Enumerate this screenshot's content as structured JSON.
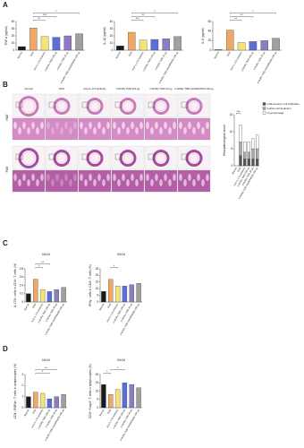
{
  "panels": [
    "A",
    "B",
    "C",
    "D"
  ],
  "histology": {
    "columns": [
      "Normal",
      "DSS",
      "Anti-IL-17A antibody",
      "rt-RORγ TMD 100 μg",
      "rt-RORγ TMD 20 μg",
      "rt-RORγ TMD (H426/RA50) 100 μg"
    ],
    "rows": [
      "H&E",
      "PAS"
    ]
  },
  "chart_data": [
    {
      "type": "bar",
      "ylabel": "TNF-α (pg/ml)",
      "categories": [
        "Normal",
        "DSS",
        "Anti-IL-17A antibody",
        "rt-RORγ TMD 100 μg",
        "rt-RORγ TMD 20 μg",
        "rt-RORγ TMD (H426/RA50) 100 μg"
      ],
      "values": [
        5,
        31,
        19,
        18,
        20,
        23
      ],
      "colors": [
        "#1a1a1a",
        "#f0a868",
        "#f5e27a",
        "#5b6fd6",
        "#8e7cc3",
        "#a0a0a0"
      ],
      "ylim": [
        0,
        40
      ],
      "yticks": [
        0,
        10,
        20,
        30,
        40
      ],
      "brackets": [
        {
          "from": 1,
          "to": 2,
          "label": "**"
        },
        {
          "from": 1,
          "to": 3,
          "label": "***"
        },
        {
          "from": 1,
          "to": 5,
          "label": "*"
        }
      ]
    },
    {
      "type": "bar",
      "ylabel": "IL-1β (pg/ml)",
      "categories": [
        "Normal",
        "DSS",
        "Anti-IL-17A antibody",
        "rt-RORγ TMD 100 μg",
        "rt-RORγ TMD 20 μg",
        "rt-RORγ TMD (H426/RA50) 100 μg"
      ],
      "values": [
        6,
        25,
        14,
        15,
        16,
        19
      ],
      "colors": [
        "#1a1a1a",
        "#f0a868",
        "#f5e27a",
        "#5b6fd6",
        "#8e7cc3",
        "#a0a0a0"
      ],
      "ylim": [
        0,
        40
      ],
      "yticks": [
        0,
        10,
        20,
        30,
        40
      ],
      "brackets": [
        {
          "from": 1,
          "to": 2,
          "label": "***"
        },
        {
          "from": 1,
          "to": 3,
          "label": "**"
        },
        {
          "from": 1,
          "to": 5,
          "label": "*"
        }
      ]
    },
    {
      "type": "bar",
      "ylabel": "IL-6 (pg/ml)",
      "categories": [
        "Normal",
        "DSS",
        "Anti-IL-17A antibody",
        "rt-RORγ TMD 100 μg",
        "rt-RORγ TMD 20 μg",
        "rt-RORγ TMD (H426/RA50) 100 μg"
      ],
      "values": [
        1,
        42,
        16,
        18,
        20,
        25
      ],
      "colors": [
        "#1a1a1a",
        "#f0a868",
        "#f5e27a",
        "#5b6fd6",
        "#8e7cc3",
        "#a0a0a0"
      ],
      "ylim": [
        0,
        60
      ],
      "yticks": [
        0,
        20,
        40,
        60
      ],
      "brackets": [
        {
          "from": 1,
          "to": 2,
          "label": "**"
        },
        {
          "from": 1,
          "to": 3,
          "label": "**"
        },
        {
          "from": 1,
          "to": 5,
          "label": "*"
        }
      ]
    },
    {
      "type": "stacked_bar",
      "ylabel": "Histopathological score",
      "categories": [
        "Normal",
        "DSS",
        "Anti-IL-17A antibody",
        "rt-RORγ TMD 100 μg",
        "rt-RORγ TMD 20 μg",
        "rt-RORγ TMD (H426/RA50) 100 μg"
      ],
      "series": [
        {
          "name": "Inflammatory cell infiltration",
          "color": "#555555",
          "values": [
            0,
            3,
            2,
            2,
            2,
            2
          ]
        },
        {
          "name": "Goblet cell depletion",
          "color": "#aaaaaa",
          "values": [
            0,
            4,
            2,
            2,
            3,
            3
          ]
        },
        {
          "name": "Crypt damage",
          "color": "#ffffff",
          "values": [
            0,
            5,
            3,
            3,
            3,
            4
          ]
        }
      ],
      "ylim": [
        0,
        15
      ],
      "yticks": [
        0,
        5,
        10,
        15
      ],
      "brackets": [
        {
          "from": 0,
          "to": 1,
          "label": "***"
        }
      ]
    },
    {
      "type": "bar",
      "title": "MLN",
      "ylabel": "IL-17A⁺ cells in CD4⁺ T cells (%)",
      "categories": [
        "Normal",
        "DSS",
        "Anti-IL-17A antibody",
        "rt-RORγ TMD 100 μg",
        "rt-RORγ TMD 20 μg",
        "rt-RORγ TMD (H426/RA50) 100 μg"
      ],
      "values": [
        0.2,
        0.55,
        0.3,
        0.25,
        0.3,
        0.35
      ],
      "colors": [
        "#1a1a1a",
        "#f0a868",
        "#f5e27a",
        "#5b6fd6",
        "#8e7cc3",
        "#a0a0a0"
      ],
      "ylim": [
        0,
        0.8
      ],
      "yticks": [
        0,
        0.2,
        0.4,
        0.6,
        0.8
      ],
      "brackets": [
        {
          "from": 1,
          "to": 2,
          "label": "*"
        },
        {
          "from": 1,
          "to": 3,
          "label": "**"
        }
      ]
    },
    {
      "type": "bar",
      "title": "MLN",
      "ylabel": "IFNγ⁺ cells in CD4⁺ T cells (%)",
      "categories": [
        "Normal",
        "DSS",
        "Anti-IL-17A antibody",
        "rt-RORγ TMD 100 μg",
        "rt-RORγ TMD 20 μg",
        "rt-RORγ TMD (H426/RA50) 100 μg"
      ],
      "values": [
        8,
        17,
        12,
        12,
        13,
        14
      ],
      "colors": [
        "#1a1a1a",
        "#f0a868",
        "#f5e27a",
        "#5b6fd6",
        "#8e7cc3",
        "#a0a0a0"
      ],
      "ylim": [
        0,
        25
      ],
      "yticks": [
        0,
        5,
        10,
        15,
        20,
        25
      ],
      "brackets": [
        {
          "from": 1,
          "to": 2,
          "label": "*"
        }
      ]
    },
    {
      "type": "bar",
      "title": "MLN",
      "ylabel": "CD4⁺ RORγt⁺ T cells in lymphocytes (%)",
      "categories": [
        "Normal",
        "DSS",
        "Anti-IL-17A antibody",
        "rt-RORγ TMD 100 μg",
        "rt-RORγ TMD 20 μg",
        "rt-RORγ TMD (H426/RA50) 100 μg"
      ],
      "values": [
        1.0,
        1.4,
        1.3,
        0.8,
        1.0,
        1.2
      ],
      "colors": [
        "#1a1a1a",
        "#f0a868",
        "#f5e27a",
        "#5b6fd6",
        "#8e7cc3",
        "#a0a0a0"
      ],
      "ylim": [
        0,
        3
      ],
      "yticks": [
        0,
        1,
        2,
        3
      ],
      "brackets": [
        {
          "from": 1,
          "to": 3,
          "label": "*"
        },
        {
          "from": 1,
          "to": 4,
          "label": "**"
        }
      ]
    },
    {
      "type": "bar",
      "title": "MLN",
      "ylabel": "CD4⁺ Foxp3⁺ T cells in lymphocytes (%)",
      "categories": [
        "Normal",
        "DSS",
        "Anti-IL-17A antibody",
        "rt-RORγ TMD 100 μg",
        "rt-RORγ TMD 20 μg",
        "rt-RORγ TMD (H426/RA50) 100 μg"
      ],
      "values": [
        14,
        8,
        11,
        15,
        14,
        12
      ],
      "colors": [
        "#1a1a1a",
        "#f0a868",
        "#f5e27a",
        "#5b6fd6",
        "#8e7cc3",
        "#a0a0a0"
      ],
      "ylim": [
        0,
        20
      ],
      "yticks": [
        0,
        5,
        10,
        15,
        20
      ],
      "brackets": [
        {
          "from": 0,
          "to": 1,
          "label": "*"
        },
        {
          "from": 1,
          "to": 3,
          "label": "*"
        }
      ]
    }
  ]
}
